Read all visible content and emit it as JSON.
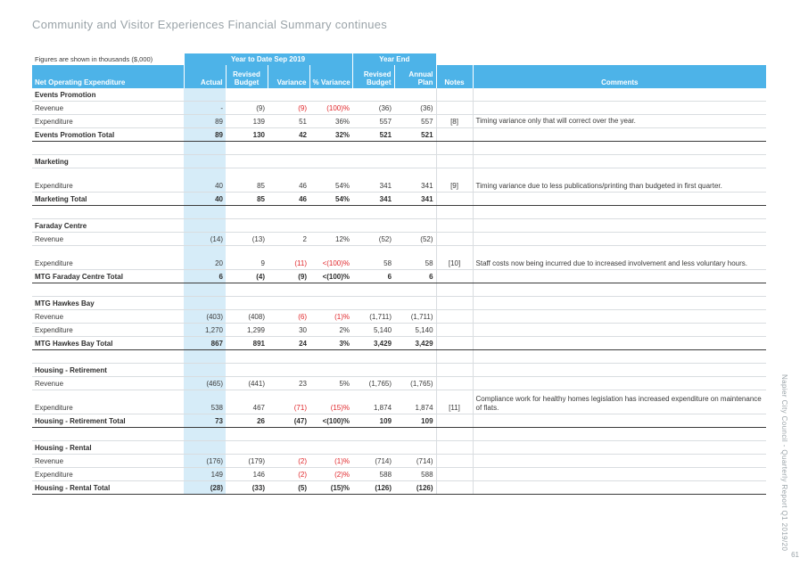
{
  "page": {
    "title": "Community and Visitor Experiences Financial Summary continues",
    "side_caption": "Napier City Council - Quarterly Report Q1 2019/20",
    "page_number": "61"
  },
  "table": {
    "figures_note": "Figures are shown in thousands ($,000)",
    "group_ytd": "Year to Date Sep 2019",
    "group_ye": "Year End",
    "headers": {
      "label": "Net Operating Expenditure",
      "actual": "Actual",
      "revised_budget": "Revised Budget",
      "variance": "Variance",
      "pct_variance": "% Variance",
      "ye_revised_budget": "Revised Budget",
      "annual_plan": "Annual Plan",
      "notes": "Notes",
      "comments": "Comments"
    },
    "rows": [
      {
        "type": "section",
        "label": "Events Promotion"
      },
      {
        "type": "row",
        "label": "Revenue",
        "actual": "-",
        "budget": "(9)",
        "variance": "(9)",
        "pct": "(100)%",
        "ye_budget": "(36)",
        "plan": "(36)",
        "notes": "",
        "comment": "",
        "neg": true
      },
      {
        "type": "row",
        "label": "Expenditure",
        "actual": "89",
        "budget": "139",
        "variance": "51",
        "pct": "36%",
        "ye_budget": "557",
        "plan": "557",
        "notes": "[8]",
        "comment": "Timing variance only that will correct over the year.",
        "neg": false
      },
      {
        "type": "total",
        "label": "Events Promotion Total",
        "actual": "89",
        "budget": "130",
        "variance": "42",
        "pct": "32%",
        "ye_budget": "521",
        "plan": "521",
        "notes": "",
        "comment": "",
        "neg": false
      },
      {
        "type": "blank"
      },
      {
        "type": "section",
        "label": "Marketing"
      },
      {
        "type": "row",
        "label": "Expenditure",
        "actual": "40",
        "budget": "85",
        "variance": "46",
        "pct": "54%",
        "ye_budget": "341",
        "plan": "341",
        "notes": "[9]",
        "comment": "Timing variance due to less publications/printing than budgeted in first quarter.",
        "neg": false,
        "tall": true
      },
      {
        "type": "total",
        "label": "Marketing Total",
        "actual": "40",
        "budget": "85",
        "variance": "46",
        "pct": "54%",
        "ye_budget": "341",
        "plan": "341",
        "notes": "",
        "comment": "",
        "neg": false
      },
      {
        "type": "blank"
      },
      {
        "type": "section",
        "label": "Faraday Centre"
      },
      {
        "type": "row",
        "label": "Revenue",
        "actual": "(14)",
        "budget": "(13)",
        "variance": "2",
        "pct": "12%",
        "ye_budget": "(52)",
        "plan": "(52)",
        "notes": "",
        "comment": "",
        "neg": false
      },
      {
        "type": "row",
        "label": "Expenditure",
        "actual": "20",
        "budget": "9",
        "variance": "(11)",
        "pct": "<(100)%",
        "ye_budget": "58",
        "plan": "58",
        "notes": "[10]",
        "comment": "Staff costs now being incurred due to increased involvement and less voluntary hours.",
        "neg": true,
        "tall": true
      },
      {
        "type": "total",
        "label": "MTG Faraday Centre Total",
        "actual": "6",
        "budget": "(4)",
        "variance": "(9)",
        "pct": "<(100)%",
        "ye_budget": "6",
        "plan": "6",
        "notes": "",
        "comment": "",
        "neg": true
      },
      {
        "type": "blank"
      },
      {
        "type": "section",
        "label": "MTG Hawkes Bay"
      },
      {
        "type": "row",
        "label": "Revenue",
        "actual": "(403)",
        "budget": "(408)",
        "variance": "(6)",
        "pct": "(1)%",
        "ye_budget": "(1,711)",
        "plan": "(1,711)",
        "notes": "",
        "comment": "",
        "neg": true
      },
      {
        "type": "row",
        "label": "Expenditure",
        "actual": "1,270",
        "budget": "1,299",
        "variance": "30",
        "pct": "2%",
        "ye_budget": "5,140",
        "plan": "5,140",
        "notes": "",
        "comment": "",
        "neg": false
      },
      {
        "type": "total",
        "label": "MTG Hawkes Bay Total",
        "actual": "867",
        "budget": "891",
        "variance": "24",
        "pct": "3%",
        "ye_budget": "3,429",
        "plan": "3,429",
        "notes": "",
        "comment": "",
        "neg": false
      },
      {
        "type": "blank"
      },
      {
        "type": "section",
        "label": "Housing - Retirement"
      },
      {
        "type": "row",
        "label": "Revenue",
        "actual": "(465)",
        "budget": "(441)",
        "variance": "23",
        "pct": "5%",
        "ye_budget": "(1,765)",
        "plan": "(1,765)",
        "notes": "",
        "comment": "",
        "neg": false
      },
      {
        "type": "row",
        "label": "Expenditure",
        "actual": "538",
        "budget": "467",
        "variance": "(71)",
        "pct": "(15)%",
        "ye_budget": "1,874",
        "plan": "1,874",
        "notes": "[11]",
        "comment": "Compliance work for healthy homes legislation has increased expenditure on maintenance of flats.",
        "neg": true,
        "tall": true
      },
      {
        "type": "total",
        "label": "Housing - Retirement Total",
        "actual": "73",
        "budget": "26",
        "variance": "(47)",
        "pct": "<(100)%",
        "ye_budget": "109",
        "plan": "109",
        "notes": "",
        "comment": "",
        "neg": true
      },
      {
        "type": "blank"
      },
      {
        "type": "section",
        "label": "Housing - Rental"
      },
      {
        "type": "row",
        "label": "Revenue",
        "actual": "(176)",
        "budget": "(179)",
        "variance": "(2)",
        "pct": "(1)%",
        "ye_budget": "(714)",
        "plan": "(714)",
        "notes": "",
        "comment": "",
        "neg": true
      },
      {
        "type": "row",
        "label": "Expenditure",
        "actual": "149",
        "budget": "146",
        "variance": "(2)",
        "pct": "(2)%",
        "ye_budget": "588",
        "plan": "588",
        "notes": "",
        "comment": "",
        "neg": true
      },
      {
        "type": "total",
        "label": "Housing - Rental Total",
        "actual": "(28)",
        "budget": "(33)",
        "variance": "(5)",
        "pct": "(15)%",
        "ye_budget": "(126)",
        "plan": "(126)",
        "notes": "",
        "comment": "",
        "neg": true
      }
    ]
  },
  "colors": {
    "header_blue": "#4db3e8",
    "actual_shade": "#d6ecf8",
    "negative_red": "#e0262a"
  }
}
